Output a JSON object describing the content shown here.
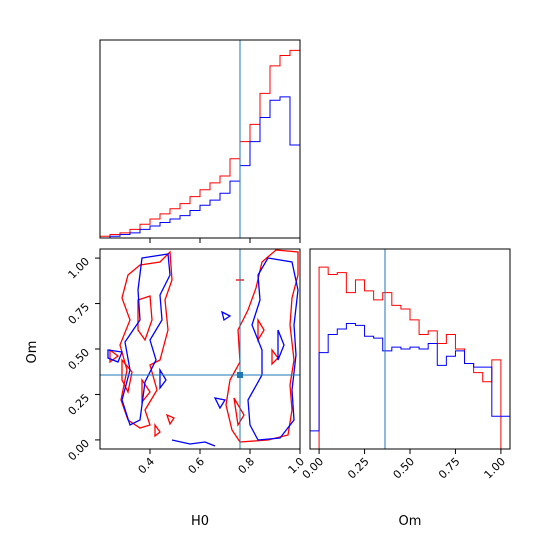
{
  "chart_data": {
    "type": "corner",
    "parameters": [
      "H0",
      "Om"
    ],
    "truth": {
      "H0": 0.79,
      "Om": 0.36
    },
    "colors": {
      "red": "#ff0000",
      "blue": "#0000ff",
      "truth": "#1f77b4"
    },
    "x_ticks": {
      "H0": [
        "0.4",
        "0.6",
        "0.8",
        "1.0"
      ],
      "Om": [
        "0.00",
        "0.25",
        "0.50",
        "0.75",
        "1.00"
      ]
    },
    "y_ticks": {
      "Om": [
        "0.00",
        "0.25",
        "0.50",
        "0.75",
        "1.00"
      ]
    },
    "axis_labels": {
      "x_h0": "H0",
      "x_om": "Om",
      "y_om": "Om"
    },
    "hist_h0": {
      "bin_edges": [
        0.2,
        0.24,
        0.28,
        0.32,
        0.36,
        0.4,
        0.44,
        0.48,
        0.52,
        0.56,
        0.6,
        0.64,
        0.68,
        0.72,
        0.76,
        0.8,
        0.84,
        0.88,
        0.92,
        0.96,
        1.0
      ],
      "red": [
        1,
        2,
        3,
        5,
        8,
        11,
        14,
        17,
        20,
        24,
        28,
        32,
        36,
        46,
        56,
        66,
        84,
        100,
        106,
        109
      ],
      "blue": [
        0,
        1,
        2,
        3,
        5,
        7,
        9,
        11,
        13,
        16,
        19,
        22,
        26,
        33,
        42,
        56,
        70,
        80,
        82,
        54
      ]
    },
    "hist_om": {
      "bin_edges": [
        -0.05,
        0.0,
        0.05,
        0.1,
        0.15,
        0.2,
        0.25,
        0.3,
        0.35,
        0.4,
        0.45,
        0.5,
        0.55,
        0.6,
        0.65,
        0.7,
        0.75,
        0.8,
        0.85,
        0.9,
        0.95,
        1.0,
        1.05
      ],
      "red": [
        0,
        100,
        96,
        97,
        86,
        93,
        87,
        82,
        86,
        79,
        77,
        71,
        63,
        65,
        58,
        63,
        55,
        47,
        42,
        37,
        49,
        0
      ],
      "blue": [
        10,
        53,
        63,
        66,
        69,
        68,
        62,
        61,
        54,
        56,
        55,
        56,
        55,
        58,
        46,
        51,
        54,
        47,
        45,
        45,
        18,
        18
      ]
    }
  }
}
